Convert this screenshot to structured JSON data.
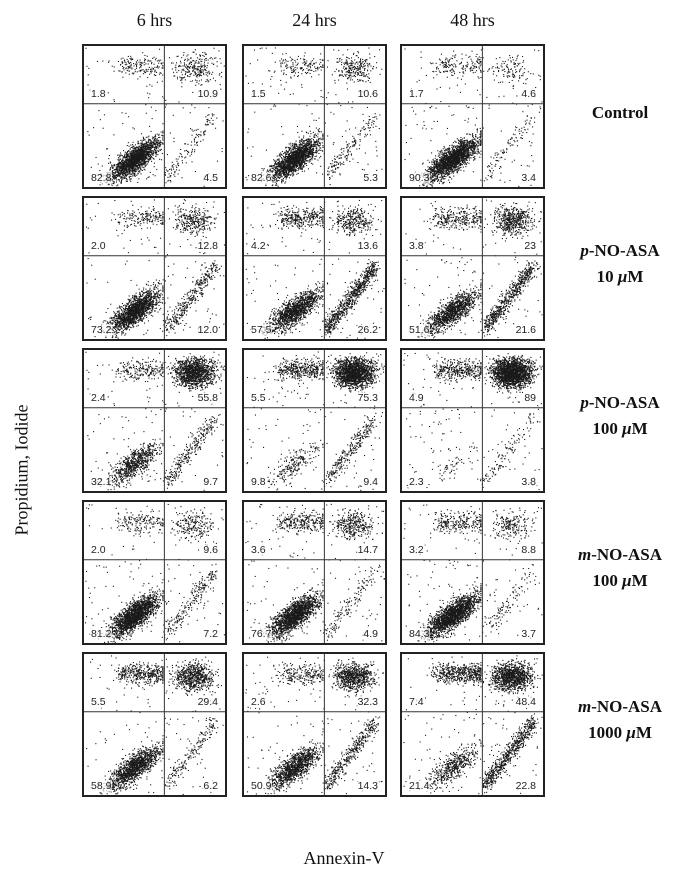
{
  "chart_data": {
    "type": "scatter",
    "title": "",
    "xlabel": "Annexin-V",
    "ylabel": "Propidium, Iodide",
    "columns": [
      "6 hrs",
      "24 hrs",
      "48 hrs"
    ],
    "rows": [
      {
        "label_parts": [
          {
            "text": "Control",
            "italic": false
          }
        ],
        "panels": [
          {
            "ul": "1.8",
            "ur": "10.9",
            "ll": "82.8",
            "lr": "4.5"
          },
          {
            "ul": "1.5",
            "ur": "10.6",
            "ll": "82.6",
            "lr": "5.3"
          },
          {
            "ul": "1.7",
            "ur": "4.6",
            "ll": "90.3",
            "lr": "3.4"
          }
        ]
      },
      {
        "label_parts": [
          {
            "text": "p",
            "italic": true
          },
          {
            "text": "-NO-ASA",
            "italic": false
          },
          {
            "text": "\n",
            "italic": false
          },
          {
            "text": "10 ",
            "italic": false
          },
          {
            "text": "μ",
            "italic": true
          },
          {
            "text": "M",
            "italic": false
          }
        ],
        "panels": [
          {
            "ul": "2.0",
            "ur": "12.8",
            "ll": "73.2",
            "lr": "12.0"
          },
          {
            "ul": "4.2",
            "ur": "13.6",
            "ll": "57.5",
            "lr": "26.2"
          },
          {
            "ul": "3.8",
            "ur": "23",
            "ll": "51.6",
            "lr": "21.6"
          }
        ]
      },
      {
        "label_parts": [
          {
            "text": "p",
            "italic": true
          },
          {
            "text": "-NO-ASA",
            "italic": false
          },
          {
            "text": "\n",
            "italic": false
          },
          {
            "text": "100 ",
            "italic": false
          },
          {
            "text": "μ",
            "italic": true
          },
          {
            "text": "M",
            "italic": false
          }
        ],
        "panels": [
          {
            "ul": "2.4",
            "ur": "55.8",
            "ll": "32.1",
            "lr": "9.7"
          },
          {
            "ul": "5.5",
            "ur": "75.3",
            "ll": "9.8",
            "lr": "9.4"
          },
          {
            "ul": "4.9",
            "ur": "89",
            "ll": "2.3",
            "lr": "3.8"
          }
        ]
      },
      {
        "label_parts": [
          {
            "text": "m",
            "italic": true
          },
          {
            "text": "-NO-ASA",
            "italic": false
          },
          {
            "text": "\n",
            "italic": false
          },
          {
            "text": "100 ",
            "italic": false
          },
          {
            "text": "μ",
            "italic": true
          },
          {
            "text": "M",
            "italic": false
          }
        ],
        "panels": [
          {
            "ul": "2.0",
            "ur": "9.6",
            "ll": "81.2",
            "lr": "7.2"
          },
          {
            "ul": "3.6",
            "ur": "14.7",
            "ll": "76.7",
            "lr": "4.9"
          },
          {
            "ul": "3.2",
            "ur": "8.8",
            "ll": "84.3",
            "lr": "3.7"
          }
        ]
      },
      {
        "label_parts": [
          {
            "text": "m",
            "italic": true
          },
          {
            "text": "-NO-ASA",
            "italic": false
          },
          {
            "text": "\n",
            "italic": false
          },
          {
            "text": "1000 ",
            "italic": false
          },
          {
            "text": "μ",
            "italic": true
          },
          {
            "text": "M",
            "italic": false
          }
        ],
        "panels": [
          {
            "ul": "5.5",
            "ur": "29.4",
            "ll": "58.9",
            "lr": "6.2"
          },
          {
            "ul": "2.6",
            "ur": "32.3",
            "ll": "50.9",
            "lr": "14.3"
          },
          {
            "ul": "7.4",
            "ur": "48.4",
            "ll": "21.4",
            "lr": "22.8"
          }
        ]
      }
    ],
    "grid": false,
    "legend": "none"
  }
}
